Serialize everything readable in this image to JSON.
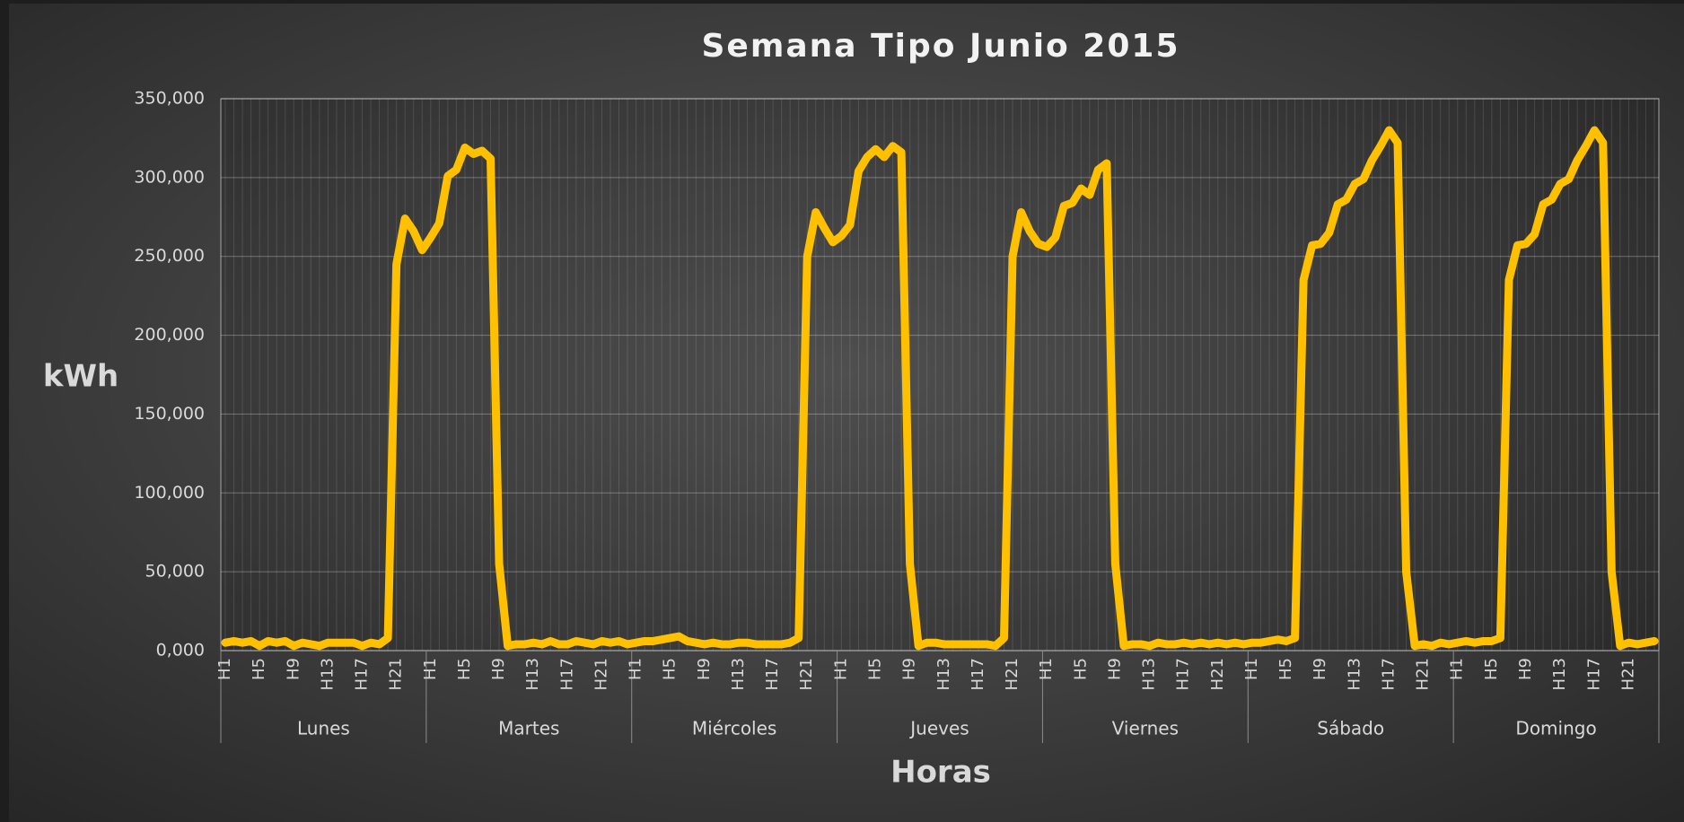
{
  "chart_data": {
    "type": "line",
    "title": "Semana Tipo Junio 2015",
    "y_label": "kWh",
    "x_label": "Horas",
    "categories": [
      "H1",
      null,
      null,
      null,
      "H5",
      null,
      null,
      null,
      "H9",
      null,
      null,
      null,
      "H13",
      null,
      null,
      null,
      "H17",
      null,
      null,
      null,
      "H21",
      null,
      null,
      null,
      "H1",
      null,
      null,
      null,
      "H5",
      null,
      null,
      null,
      "H9",
      null,
      null,
      null,
      "H13",
      null,
      null,
      null,
      "H17",
      null,
      null,
      null,
      "H21",
      null,
      null,
      null,
      "H1",
      null,
      null,
      null,
      "H5",
      null,
      null,
      null,
      "H9",
      null,
      null,
      null,
      "H13",
      null,
      null,
      null,
      "H17",
      null,
      null,
      null,
      "H21",
      null,
      null,
      null,
      "H1",
      null,
      null,
      null,
      "H5",
      null,
      null,
      null,
      "H9",
      null,
      null,
      null,
      "H13",
      null,
      null,
      null,
      "H17",
      null,
      null,
      null,
      "H21",
      null,
      null,
      null,
      "H1",
      null,
      null,
      null,
      "H5",
      null,
      null,
      null,
      "H9",
      null,
      null,
      null,
      "H13",
      null,
      null,
      null,
      "H17",
      null,
      null,
      null,
      "H21",
      null,
      null,
      null,
      "H1",
      null,
      null,
      null,
      "H5",
      null,
      null,
      null,
      "H9",
      null,
      null,
      null,
      "H13",
      null,
      null,
      null,
      "H17",
      null,
      null,
      null,
      "H21",
      null,
      null,
      null,
      "H1",
      null,
      null,
      null,
      "H5",
      null,
      null,
      null,
      "H9",
      null,
      null,
      null,
      "H13",
      null,
      null,
      null,
      "H17",
      null,
      null,
      null,
      "H21",
      null,
      null,
      null
    ],
    "groups": [
      "Lunes",
      "Martes",
      "Miércoles",
      "Jueves",
      "Viernes",
      "Sábado",
      "Domingo"
    ],
    "color": "#ffc000",
    "values": [
      5000,
      6000,
      5000,
      6000,
      3000,
      6000,
      5000,
      6000,
      3000,
      5000,
      4000,
      3000,
      5000,
      5000,
      5000,
      5000,
      3000,
      5000,
      4000,
      8000,
      245000,
      274000,
      266000,
      254000,
      262000,
      271000,
      301000,
      305000,
      319000,
      315000,
      317000,
      312000,
      55000,
      3000,
      4000,
      4000,
      5000,
      4000,
      6000,
      4000,
      4000,
      6000,
      5000,
      4000,
      6000,
      5000,
      6000,
      4000,
      5000,
      6000,
      6000,
      7000,
      8000,
      9000,
      6000,
      5000,
      4000,
      5000,
      4000,
      4000,
      5000,
      5000,
      4000,
      4000,
      4000,
      4000,
      5000,
      8000,
      250000,
      278000,
      268000,
      259000,
      263000,
      270000,
      304000,
      313000,
      318000,
      313000,
      320000,
      316000,
      55000,
      3000,
      5000,
      5000,
      4000,
      4000,
      4000,
      4000,
      4000,
      4000,
      3000,
      8000,
      250000,
      278000,
      266000,
      258000,
      256000,
      262000,
      282000,
      284000,
      293000,
      289000,
      305000,
      309000,
      55000,
      3000,
      4000,
      4000,
      3000,
      5000,
      4000,
      4000,
      5000,
      4000,
      5000,
      4000,
      5000,
      4000,
      5000,
      4000,
      5000,
      5000,
      6000,
      7000,
      6000,
      8000,
      235000,
      257000,
      258000,
      265000,
      283000,
      286000,
      296000,
      299000,
      311000,
      320000,
      330000,
      322000,
      50000,
      3000,
      4000,
      3000,
      5000,
      4000,
      5000,
      6000,
      5000,
      6000,
      6000,
      8000,
      235000,
      257000,
      258000,
      264000,
      283000,
      286000,
      296000,
      299000,
      311000,
      320000,
      330000,
      322000,
      50000,
      3000,
      5000,
      4000,
      5000,
      6000
    ],
    "ylim": [
      0,
      350000
    ],
    "yticks": [
      {
        "value": 0,
        "label": "0,000"
      },
      {
        "value": 50000,
        "label": "50,000"
      },
      {
        "value": 100000,
        "label": "100,000"
      },
      {
        "value": 150000,
        "label": "150,000"
      },
      {
        "value": 200000,
        "label": "200,000"
      },
      {
        "value": 250000,
        "label": "250,000"
      },
      {
        "value": 300000,
        "label": "300,000"
      },
      {
        "value": 350000,
        "label": "350,000"
      }
    ],
    "grid": true
  }
}
